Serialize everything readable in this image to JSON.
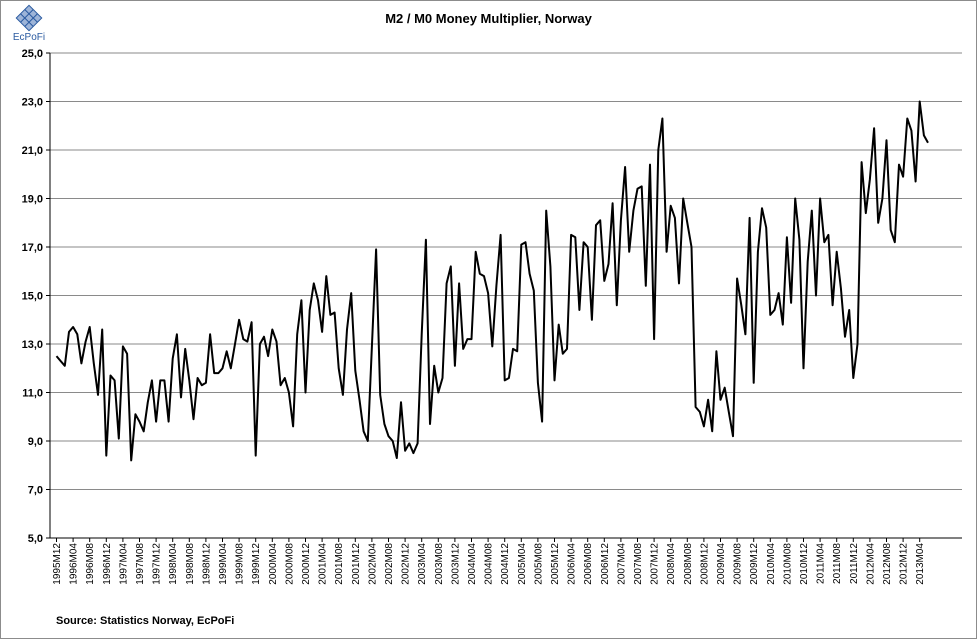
{
  "logo": {
    "text": "EcPoFi",
    "icon": "grid-diamond-logo"
  },
  "source_note": "Source: Statistics Norway, EcPoFi",
  "chart_data": {
    "type": "line",
    "title": "M2 / M0 Money Multiplier, Norway",
    "xlabel": "",
    "ylabel": "",
    "ylim": [
      5,
      25
    ],
    "yticks": [
      "5,0",
      "7,0",
      "9,0",
      "11,0",
      "13,0",
      "15,0",
      "17,0",
      "19,0",
      "21,0",
      "23,0",
      "25,0"
    ],
    "grid": true,
    "legend": "none",
    "line_color": "#000000",
    "x_tick_labels": [
      "1995M12",
      "1996M04",
      "1996M08",
      "1996M12",
      "1997M04",
      "1997M08",
      "1997M12",
      "1998M04",
      "1998M08",
      "1998M12",
      "1999M04",
      "1999M08",
      "1999M12",
      "2000M04",
      "2000M08",
      "2000M12",
      "2001M04",
      "2001M08",
      "2001M12",
      "2002M04",
      "2002M08",
      "2002M12",
      "2003M04",
      "2003M08",
      "2003M12",
      "2004M04",
      "2004M08",
      "2004M12",
      "2005M04",
      "2005M08",
      "2005M12",
      "2006M04",
      "2006M08",
      "2006M12",
      "2007M04",
      "2007M08",
      "2007M12",
      "2008M04",
      "2008M08",
      "2008M12",
      "2009M04",
      "2009M08",
      "2009M12",
      "2010M04",
      "2010M08",
      "2010M12",
      "2011M04",
      "2011M08",
      "2011M12",
      "2012M04",
      "2012M08",
      "2012M12",
      "2013M04"
    ],
    "x_start": "1995M12",
    "x_end": "2013M07",
    "series": [
      {
        "values": [
          12.5,
          12.3,
          12.1,
          13.5,
          13.7,
          13.4,
          12.2,
          13.1,
          13.7,
          12.2,
          10.9,
          13.6,
          8.4,
          11.7,
          11.5,
          9.1,
          12.9,
          12.6,
          8.2,
          10.1,
          9.8,
          9.4,
          10.6,
          11.5,
          9.8,
          11.5,
          11.5,
          9.8,
          12.4,
          13.4,
          10.8,
          12.8,
          11.5,
          9.9,
          11.6,
          11.3,
          11.4,
          13.4,
          11.8,
          11.8,
          12.0,
          12.7,
          12.0,
          13.0,
          14.0,
          13.2,
          13.1,
          13.9,
          8.4,
          13.0,
          13.3,
          12.5,
          13.6,
          13.1,
          11.3,
          11.6,
          11.0,
          9.6,
          13.4,
          14.8,
          11.0,
          14.4,
          15.5,
          14.8,
          13.5,
          15.8,
          14.2,
          14.3,
          12.0,
          10.9,
          13.6,
          15.1,
          11.9,
          10.7,
          9.4,
          9.0,
          12.9,
          16.9,
          10.9,
          9.7,
          9.2,
          9.0,
          8.3,
          10.6,
          8.6,
          8.9,
          8.5,
          8.9,
          13.4,
          17.3,
          9.7,
          12.1,
          11.0,
          11.6,
          15.5,
          16.2,
          12.1,
          15.5,
          12.8,
          13.2,
          13.2,
          16.8,
          15.9,
          15.8,
          15.1,
          12.9,
          15.4,
          17.5,
          11.5,
          11.6,
          12.8,
          12.7,
          17.1,
          17.2,
          15.9,
          15.2,
          11.4,
          9.8,
          18.5,
          16.2,
          11.5,
          13.8,
          12.6,
          12.8,
          17.5,
          17.4,
          14.4,
          17.2,
          17.0,
          14.0,
          17.9,
          18.1,
          15.6,
          16.3,
          18.8,
          14.6,
          18.1,
          20.3,
          16.8,
          18.5,
          19.4,
          19.5,
          15.4,
          20.4,
          13.2,
          21.0,
          22.3,
          16.8,
          18.7,
          18.2,
          15.5,
          19.0,
          18.0,
          17.0,
          10.4,
          10.2,
          9.6,
          10.7,
          9.4,
          12.7,
          10.7,
          11.2,
          10.2,
          9.2,
          15.7,
          14.6,
          13.4,
          18.2,
          11.4,
          16.8,
          18.6,
          17.8,
          14.2,
          14.4,
          15.1,
          13.8,
          17.4,
          14.7,
          19.0,
          17.3,
          12.0,
          16.4,
          18.5,
          15.0,
          19.0,
          17.2,
          17.5,
          14.6,
          16.8,
          15.3,
          13.3,
          14.4,
          11.6,
          13.0,
          20.5,
          18.4,
          19.8,
          21.9,
          18.0,
          19.0,
          21.4,
          17.7,
          17.2,
          20.4,
          19.9,
          22.3,
          21.8,
          19.7,
          23.0,
          21.6,
          21.3
        ]
      }
    ]
  }
}
